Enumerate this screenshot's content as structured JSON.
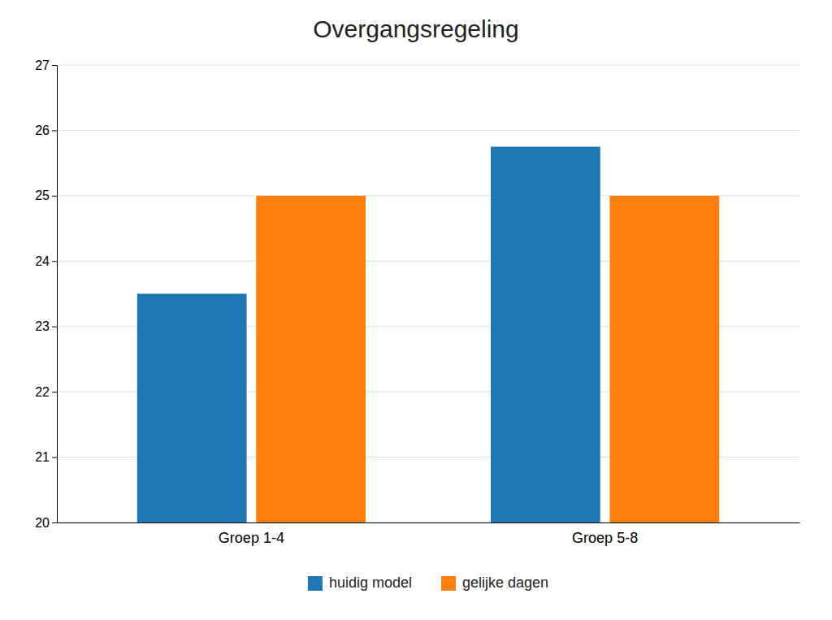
{
  "chart_data": {
    "type": "bar",
    "title": "Overgangsregeling",
    "categories": [
      "Groep 1-4",
      "Groep 5-8"
    ],
    "series": [
      {
        "name": "huidig model",
        "values": [
          23.5,
          25.75
        ]
      },
      {
        "name": "gelijke dagen",
        "values": [
          25.0,
          25.0
        ]
      }
    ],
    "ylim": [
      20,
      27
    ],
    "yticks": [
      20,
      21,
      22,
      23,
      24,
      25,
      26,
      27
    ],
    "grid": true,
    "legend": "bottom"
  }
}
